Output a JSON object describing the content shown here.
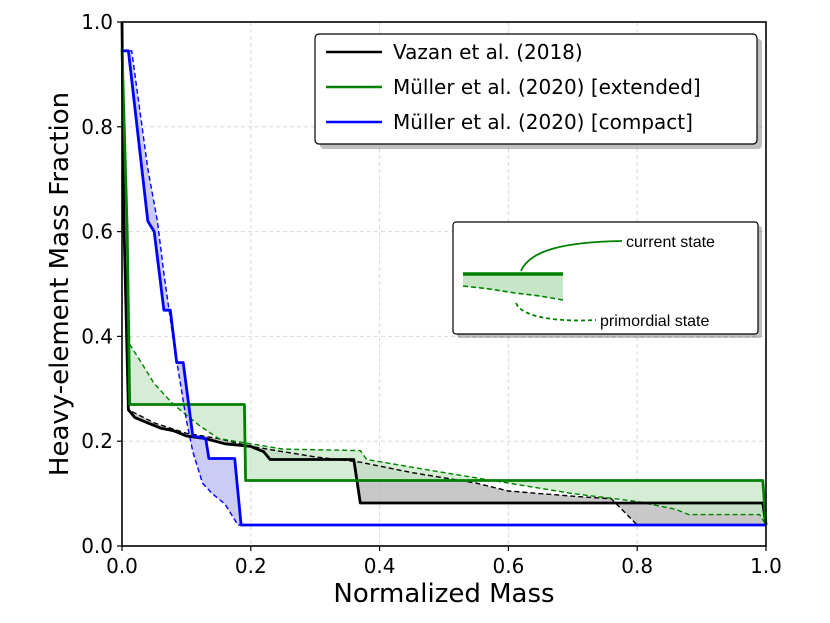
{
  "chart_data": {
    "type": "line",
    "title": "",
    "xlabel": "Normalized Mass",
    "ylabel": "Heavy-element Mass Fraction",
    "xlim": [
      0.0,
      1.0
    ],
    "ylim": [
      0.0,
      1.0
    ],
    "grid": true,
    "x_ticks": [
      "0.0",
      "0.2",
      "0.4",
      "0.6",
      "0.8",
      "1.0"
    ],
    "y_ticks": [
      "0.0",
      "0.2",
      "0.4",
      "0.6",
      "0.8",
      "1.0"
    ],
    "legend_position": "top-right",
    "series": [
      {
        "name": "Vazan et al. (2018)",
        "color": "#000000",
        "fill": "#b5b5b5",
        "current": [
          [
            0.0,
            1.0
          ],
          [
            0.003,
            0.62
          ],
          [
            0.01,
            0.26
          ],
          [
            0.02,
            0.245
          ],
          [
            0.04,
            0.235
          ],
          [
            0.06,
            0.225
          ],
          [
            0.08,
            0.22
          ],
          [
            0.1,
            0.21
          ],
          [
            0.13,
            0.205
          ],
          [
            0.16,
            0.195
          ],
          [
            0.2,
            0.19
          ],
          [
            0.21,
            0.185
          ],
          [
            0.22,
            0.18
          ],
          [
            0.23,
            0.165
          ],
          [
            0.36,
            0.165
          ],
          [
            0.37,
            0.082
          ],
          [
            0.995,
            0.082
          ],
          [
            1.0,
            0.04
          ]
        ],
        "primordial": [
          [
            0.0,
            1.0
          ],
          [
            0.003,
            0.62
          ],
          [
            0.01,
            0.26
          ],
          [
            0.05,
            0.235
          ],
          [
            0.1,
            0.215
          ],
          [
            0.15,
            0.205
          ],
          [
            0.2,
            0.19
          ],
          [
            0.25,
            0.18
          ],
          [
            0.3,
            0.17
          ],
          [
            0.35,
            0.163
          ],
          [
            0.37,
            0.16
          ],
          [
            0.45,
            0.14
          ],
          [
            0.55,
            0.12
          ],
          [
            0.6,
            0.105
          ],
          [
            0.7,
            0.095
          ],
          [
            0.76,
            0.09
          ],
          [
            0.8,
            0.04
          ],
          [
            1.0,
            0.04
          ]
        ]
      },
      {
        "name": "Müller et al. (2020) [extended]",
        "color": "#008000",
        "fill": "#c7e6c7",
        "current": [
          [
            0.0,
            0.95
          ],
          [
            0.008,
            0.6
          ],
          [
            0.012,
            0.27
          ],
          [
            0.19,
            0.27
          ],
          [
            0.192,
            0.125
          ],
          [
            0.995,
            0.125
          ],
          [
            1.0,
            0.04
          ]
        ],
        "primordial": [
          [
            0.0,
            0.95
          ],
          [
            0.008,
            0.6
          ],
          [
            0.012,
            0.385
          ],
          [
            0.03,
            0.35
          ],
          [
            0.05,
            0.31
          ],
          [
            0.08,
            0.27
          ],
          [
            0.12,
            0.23
          ],
          [
            0.15,
            0.205
          ],
          [
            0.2,
            0.195
          ],
          [
            0.25,
            0.185
          ],
          [
            0.37,
            0.182
          ],
          [
            0.38,
            0.165
          ],
          [
            0.5,
            0.14
          ],
          [
            0.6,
            0.12
          ],
          [
            0.7,
            0.1
          ],
          [
            0.8,
            0.085
          ],
          [
            0.86,
            0.07
          ],
          [
            0.88,
            0.06
          ],
          [
            0.99,
            0.06
          ],
          [
            1.0,
            0.04
          ]
        ]
      },
      {
        "name": "Müller et al. (2020) [compact]",
        "color": "#0000ff",
        "fill": "#b9b9f0",
        "current": [
          [
            0.0,
            0.945
          ],
          [
            0.01,
            0.945
          ],
          [
            0.04,
            0.62
          ],
          [
            0.05,
            0.6
          ],
          [
            0.065,
            0.45
          ],
          [
            0.075,
            0.45
          ],
          [
            0.085,
            0.35
          ],
          [
            0.095,
            0.35
          ],
          [
            0.11,
            0.21
          ],
          [
            0.13,
            0.205
          ],
          [
            0.135,
            0.167
          ],
          [
            0.175,
            0.167
          ],
          [
            0.185,
            0.04
          ],
          [
            1.0,
            0.04
          ]
        ],
        "primordial": [
          [
            0.0,
            0.945
          ],
          [
            0.015,
            0.945
          ],
          [
            0.04,
            0.72
          ],
          [
            0.055,
            0.62
          ],
          [
            0.065,
            0.52
          ],
          [
            0.08,
            0.39
          ],
          [
            0.1,
            0.24
          ],
          [
            0.11,
            0.18
          ],
          [
            0.125,
            0.12
          ],
          [
            0.14,
            0.1
          ],
          [
            0.16,
            0.08
          ],
          [
            0.18,
            0.04
          ],
          [
            1.0,
            0.04
          ]
        ]
      }
    ],
    "inset": {
      "current_label": "current state",
      "primordial_label": "primordial state",
      "color": "#008000",
      "fill": "#c7e6c7"
    }
  }
}
